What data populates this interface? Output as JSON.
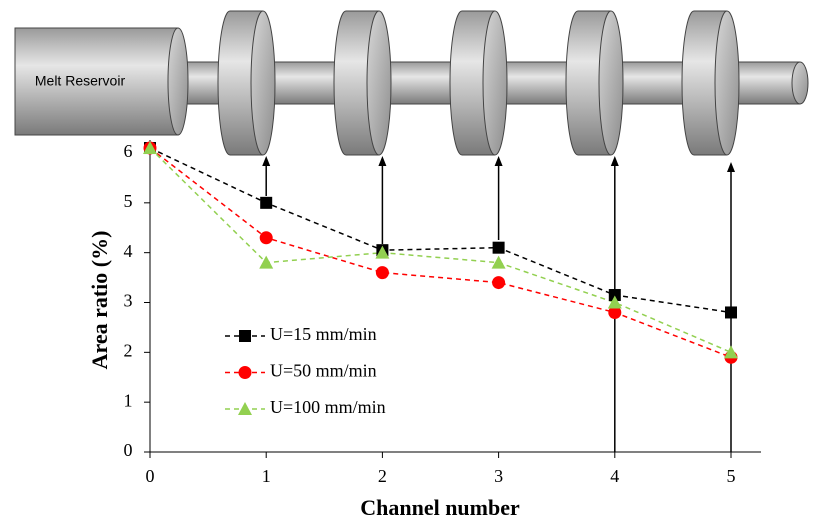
{
  "chart_data": {
    "type": "line",
    "annotations": [
      "Melt Reservoir"
    ],
    "x_label": "Channel number",
    "y_label": "Area ratio (%)",
    "x": [
      0,
      1,
      2,
      3,
      4,
      5
    ],
    "xlim": [
      0,
      5
    ],
    "xticks": [
      0,
      1,
      2,
      3,
      4,
      5
    ],
    "ylim": [
      0,
      6
    ],
    "yticks": [
      0,
      1,
      2,
      3,
      4,
      5,
      6
    ],
    "series": [
      {
        "name": "U=15 mm/min",
        "color": "#000000",
        "marker": "square",
        "values": [
          6.1,
          5.0,
          4.05,
          4.1,
          3.15,
          2.8
        ]
      },
      {
        "name": "U=50 mm/min",
        "color": "#ff0000",
        "marker": "circle",
        "values": [
          6.1,
          4.3,
          3.6,
          3.4,
          2.8,
          1.9
        ]
      },
      {
        "name": "U=100 mm/min",
        "color": "#92d050",
        "marker": "triangle",
        "values": [
          6.1,
          3.8,
          4.0,
          3.8,
          3.0,
          2.0
        ]
      }
    ]
  }
}
